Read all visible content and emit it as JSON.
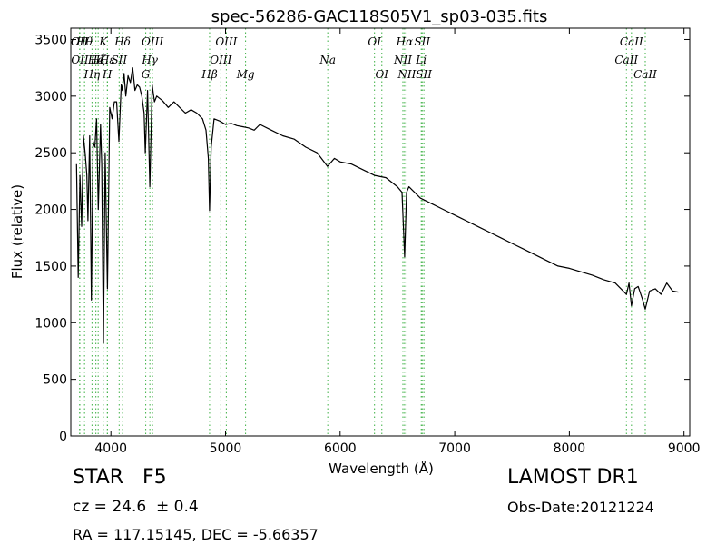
{
  "chart_data": {
    "type": "line",
    "title": "spec-56286-GAC118S05V1_sp03-035.fits",
    "xlabel": "Wavelength (Å)",
    "ylabel": "Flux (relative)",
    "xlim": [
      3650,
      9050
    ],
    "ylim": [
      0,
      3600
    ],
    "x_ticks": [
      4000,
      5000,
      6000,
      7000,
      8000,
      9000
    ],
    "y_ticks": [
      0,
      500,
      1000,
      1500,
      2000,
      2500,
      3000,
      3500
    ],
    "grid": false,
    "series": [
      {
        "color": "#000000",
        "x": [
          3700,
          3715,
          3730,
          3745,
          3760,
          3775,
          3790,
          3800,
          3815,
          3830,
          3845,
          3860,
          3875,
          3890,
          3910,
          3920,
          3935,
          3950,
          3970,
          3990,
          4010,
          4030,
          4050,
          4070,
          4090,
          4100,
          4115,
          4130,
          4150,
          4170,
          4190,
          4210,
          4230,
          4250,
          4270,
          4290,
          4300,
          4320,
          4340,
          4360,
          4380,
          4400,
          4450,
          4500,
          4550,
          4600,
          4650,
          4700,
          4750,
          4800,
          4830,
          4850,
          4861,
          4875,
          4900,
          4950,
          5000,
          5050,
          5100,
          5150,
          5200,
          5250,
          5300,
          5400,
          5500,
          5600,
          5700,
          5800,
          5890,
          5950,
          6000,
          6100,
          6200,
          6300,
          6400,
          6500,
          6540,
          6563,
          6580,
          6600,
          6700,
          6800,
          6900,
          7000,
          7100,
          7200,
          7300,
          7400,
          7500,
          7600,
          7700,
          7800,
          7900,
          8000,
          8100,
          8200,
          8300,
          8400,
          8498,
          8520,
          8542,
          8570,
          8600,
          8640,
          8662,
          8700,
          8750,
          8800,
          8850,
          8900,
          8950
        ],
        "y": [
          2400,
          1400,
          2300,
          1850,
          2650,
          2500,
          2300,
          1900,
          2650,
          1200,
          2600,
          2550,
          2800,
          2000,
          2750,
          2400,
          820,
          2500,
          1300,
          2900,
          2800,
          2950,
          2950,
          2600,
          3100,
          3050,
          3200,
          3000,
          3180,
          3120,
          3250,
          3050,
          3100,
          3080,
          3000,
          2850,
          2500,
          3050,
          2200,
          3100,
          2950,
          3000,
          2960,
          2900,
          2950,
          2900,
          2850,
          2880,
          2850,
          2800,
          2700,
          2450,
          1990,
          2550,
          2800,
          2780,
          2750,
          2760,
          2740,
          2730,
          2720,
          2700,
          2750,
          2700,
          2650,
          2620,
          2550,
          2500,
          2380,
          2450,
          2420,
          2400,
          2350,
          2300,
          2280,
          2200,
          2150,
          1580,
          2150,
          2200,
          2100,
          2050,
          2000,
          1950,
          1900,
          1850,
          1800,
          1750,
          1700,
          1650,
          1600,
          1550,
          1500,
          1480,
          1450,
          1420,
          1380,
          1350,
          1250,
          1350,
          1150,
          1300,
          1320,
          1200,
          1120,
          1280,
          1300,
          1250,
          1350,
          1280,
          1270
        ]
      }
    ],
    "line_markers": [
      {
        "x": 3727,
        "label": "OII",
        "row": 0,
        "tag": "OII"
      },
      {
        "x": 3729,
        "label": "OII",
        "row": 1,
        "tag": "OII"
      },
      {
        "x": 3770,
        "label": "Hθ",
        "row": 0,
        "tag": "H-theta"
      },
      {
        "x": 3835,
        "label": "Hη",
        "row": 2,
        "tag": "H-eta"
      },
      {
        "x": 3869,
        "label": "He",
        "row": 1,
        "tag": "He"
      },
      {
        "x": 3889,
        "label": "Hζ",
        "row": 1,
        "tag": "H-zeta"
      },
      {
        "x": 3934,
        "label": "K",
        "row": 0,
        "tag": "K"
      },
      {
        "x": 3969,
        "label": "H",
        "row": 2,
        "tag": "H"
      },
      {
        "x": 3970,
        "label": "Hε",
        "row": 1,
        "tag": "H-epsilon"
      },
      {
        "x": 4072,
        "label": "SII",
        "row": 1,
        "tag": "SII"
      },
      {
        "x": 4102,
        "label": "Hδ",
        "row": 0,
        "tag": "H-delta"
      },
      {
        "x": 4304,
        "label": "G",
        "row": 2,
        "tag": "G"
      },
      {
        "x": 4340,
        "label": "Hγ",
        "row": 1,
        "tag": "H-gamma"
      },
      {
        "x": 4363,
        "label": "OIII",
        "row": 0,
        "tag": "OIII"
      },
      {
        "x": 4861,
        "label": "Hβ",
        "row": 2,
        "tag": "H-beta"
      },
      {
        "x": 4959,
        "label": "OIII",
        "row": 1,
        "tag": "OIII"
      },
      {
        "x": 5007,
        "label": "OIII",
        "row": 0,
        "tag": "OIII"
      },
      {
        "x": 5175,
        "label": "Mg",
        "row": 2,
        "tag": "Mg"
      },
      {
        "x": 5892,
        "label": "Na",
        "row": 1,
        "tag": "Na"
      },
      {
        "x": 6300,
        "label": "OI",
        "row": 0,
        "tag": "OI"
      },
      {
        "x": 6364,
        "label": "OI",
        "row": 2,
        "tag": "OI"
      },
      {
        "x": 6548,
        "label": "NII",
        "row": 1,
        "tag": "NII"
      },
      {
        "x": 6563,
        "label": "Hα",
        "row": 0,
        "tag": "H-alpha"
      },
      {
        "x": 6583,
        "label": "NII",
        "row": 2,
        "tag": "NII"
      },
      {
        "x": 6708,
        "label": "Li",
        "row": 1,
        "tag": "Li"
      },
      {
        "x": 6716,
        "label": "SII",
        "row": 0,
        "tag": "SII"
      },
      {
        "x": 6731,
        "label": "SII",
        "row": 2,
        "tag": "SII"
      },
      {
        "x": 8498,
        "label": "CaII",
        "row": 1,
        "tag": "CaII"
      },
      {
        "x": 8542,
        "label": "CaII",
        "row": 0,
        "tag": "CaII"
      },
      {
        "x": 8662,
        "label": "CaII",
        "row": 2,
        "tag": "CaII"
      }
    ],
    "marker_color": "#3cb043"
  },
  "info": {
    "class": "STAR   F5",
    "survey": "LAMOST DR1",
    "cz": "cz = 24.6  ± 0.4",
    "obs_date": "Obs-Date:20121224",
    "coords": "RA = 117.15145, DEC = -5.66357"
  }
}
